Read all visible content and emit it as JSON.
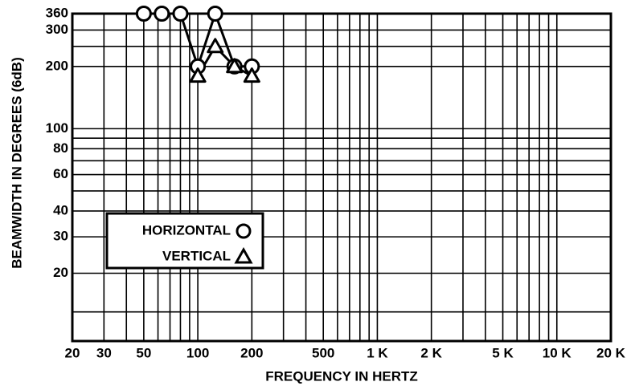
{
  "chart_data": {
    "type": "line",
    "x_label": "FREQUENCY IN HERTZ",
    "y_label": "BEAMWIDTH IN DEGREES (6dB)",
    "xscale": "log",
    "yscale": "log",
    "xlim": [
      20,
      20000
    ],
    "ylim": [
      9.4,
      360
    ],
    "xticks": [
      20,
      30,
      50,
      100,
      200,
      500,
      {
        "value": 1000,
        "label": "1 K"
      },
      {
        "value": 2000,
        "label": "2 K"
      },
      {
        "value": 5000,
        "label": "5 K"
      },
      {
        "value": 10000,
        "label": "10 K"
      },
      {
        "value": 20000,
        "label": "20 K"
      }
    ],
    "xgrid": [
      40,
      60,
      70,
      80,
      90,
      300,
      400,
      600,
      700,
      800,
      900,
      3000,
      4000,
      6000,
      7000,
      8000,
      9000
    ],
    "yticks": [
      20,
      30,
      40,
      60,
      80,
      100,
      200,
      300,
      360
    ],
    "ygrid": [
      13,
      50,
      70,
      90,
      250
    ],
    "grid": true,
    "legend": "lower-left",
    "series": [
      {
        "name": "HORIZONTAL",
        "marker": "circle",
        "color": "#000000",
        "x": [
          50,
          63,
          80,
          100,
          125,
          160,
          200
        ],
        "values": [
          360,
          360,
          360,
          200,
          360,
          200,
          200
        ]
      },
      {
        "name": "VERTICAL",
        "marker": "triangle",
        "color": "#000000",
        "x": [
          100,
          125,
          160,
          200
        ],
        "values": [
          180,
          250,
          200,
          180
        ]
      }
    ]
  }
}
